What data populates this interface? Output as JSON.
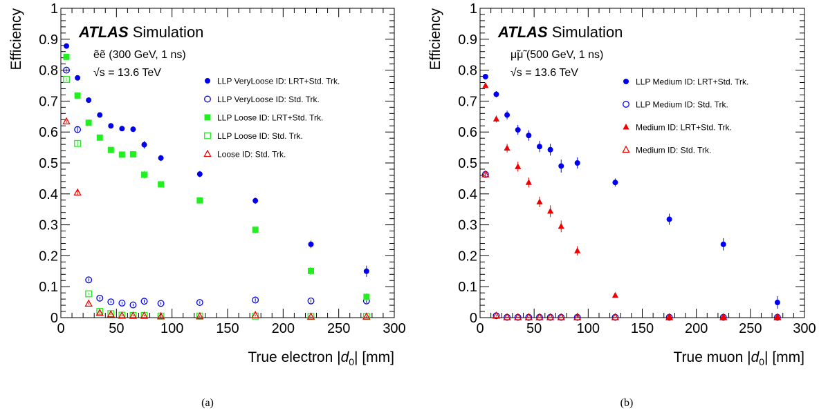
{
  "chart_data": [
    {
      "type": "scatter",
      "caption": "(a)",
      "atlas_label": "ATLAS",
      "atlas_suffix": "Simulation",
      "process_label": "ẽẽ (300 GeV, 1 ns)",
      "energy_label": "√s = 13.6 TeV",
      "xlabel": "True electron |d0| [mm]",
      "ylabel": "Efficiency",
      "xlim": [
        0,
        300
      ],
      "ylim": [
        0,
        1
      ],
      "xticks": [
        "0",
        "50",
        "100",
        "150",
        "200",
        "250",
        "300"
      ],
      "yticks": [
        "0",
        "0.1",
        "0.2",
        "0.3",
        "0.4",
        "0.5",
        "0.6",
        "0.7",
        "0.8",
        "0.9",
        "1"
      ],
      "legend_position": "top-right",
      "series": [
        {
          "name": "LLP VeryLoose ID: LRT+Std. Trk.",
          "marker": "circle-filled",
          "color": "#0000ee",
          "x": [
            5,
            15,
            25,
            35,
            45,
            55,
            65,
            75,
            90,
            125,
            175,
            225,
            275
          ],
          "y": [
            0.878,
            0.775,
            0.703,
            0.655,
            0.62,
            0.611,
            0.609,
            0.559,
            0.516,
            0.464,
            0.378,
            0.237,
            0.15
          ],
          "err": [
            0.005,
            0.008,
            0.007,
            0.008,
            0.008,
            0.008,
            0.009,
            0.012,
            0.01,
            0.01,
            0.01,
            0.012,
            0.018
          ]
        },
        {
          "name": "LLP VeryLoose ID: Std. Trk.",
          "marker": "circle-open",
          "color": "#0000ee",
          "x": [
            5,
            15,
            25,
            35,
            45,
            55,
            65,
            75,
            90,
            125,
            175,
            225,
            275
          ],
          "y": [
            0.8,
            0.608,
            0.122,
            0.063,
            0.051,
            0.047,
            0.041,
            0.053,
            0.046,
            0.049,
            0.057,
            0.054,
            0.054
          ],
          "err": [
            0.005,
            0.008,
            0.005,
            0.004,
            0.004,
            0.004,
            0.004,
            0.005,
            0.004,
            0.004,
            0.005,
            0.005,
            0.007
          ]
        },
        {
          "name": "LLP Loose ID: LRT+Std. Trk.",
          "marker": "square-filled",
          "color": "#22ee22",
          "x": [
            5,
            15,
            25,
            35,
            45,
            55,
            65,
            75,
            90,
            125,
            175,
            225,
            275
          ],
          "y": [
            0.843,
            0.718,
            0.63,
            0.582,
            0.542,
            0.527,
            0.528,
            0.462,
            0.431,
            0.379,
            0.284,
            0.151,
            0.067
          ],
          "err": [
            0.005,
            0.008,
            0.007,
            0.008,
            0.008,
            0.008,
            0.009,
            0.012,
            0.01,
            0.01,
            0.01,
            0.012,
            0.012
          ]
        },
        {
          "name": "LLP Loose ID: Std. Trk.",
          "marker": "square-open",
          "color": "#22ee22",
          "x": [
            5,
            15,
            25,
            35,
            45,
            55,
            65,
            75,
            90,
            125,
            175,
            225,
            275
          ],
          "y": [
            0.77,
            0.563,
            0.077,
            0.02,
            0.013,
            0.008,
            0.007,
            0.007,
            0.005,
            0.005,
            0.005,
            0.004,
            0.004
          ],
          "err": [
            0.005,
            0.008,
            0.004,
            0.002,
            0.002,
            0.002,
            0.002,
            0.002,
            0.002,
            0.002,
            0.002,
            0.002,
            0.002
          ]
        },
        {
          "name": "Loose ID: Std. Trk.",
          "marker": "triangle-open",
          "color": "#ee0000",
          "x": [
            5,
            15,
            25,
            35,
            45,
            55,
            65,
            75,
            90,
            125,
            175,
            225,
            275
          ],
          "y": [
            0.634,
            0.404,
            0.045,
            0.015,
            0.01,
            0.006,
            0.006,
            0.006,
            0.004,
            0.004,
            0.008,
            0.003,
            0.003
          ],
          "err": [
            0.005,
            0.008,
            0.003,
            0.002,
            0.002,
            0.002,
            0.002,
            0.002,
            0.002,
            0.002,
            0.002,
            0.002,
            0.002
          ]
        }
      ]
    },
    {
      "type": "scatter",
      "caption": "(b)",
      "atlas_label": "ATLAS",
      "atlas_suffix": "Simulation",
      "process_label": "μ̃μ̃ (500 GeV, 1 ns)",
      "energy_label": "√s = 13.6 TeV",
      "xlabel": "True muon |d0| [mm]",
      "ylabel": "Efficiency",
      "xlim": [
        0,
        300
      ],
      "ylim": [
        0,
        1
      ],
      "xticks": [
        "0",
        "50",
        "100",
        "150",
        "200",
        "250",
        "300"
      ],
      "yticks": [
        "0",
        "0.1",
        "0.2",
        "0.3",
        "0.4",
        "0.5",
        "0.6",
        "0.7",
        "0.8",
        "0.9",
        "1"
      ],
      "legend_position": "top-right",
      "series": [
        {
          "name": "LLP Medium ID: LRT+Std. Trk.",
          "marker": "circle-filled",
          "color": "#0000ee",
          "x": [
            5,
            15,
            25,
            35,
            45,
            55,
            65,
            75,
            90,
            125,
            175,
            225,
            275
          ],
          "y": [
            0.779,
            0.722,
            0.655,
            0.607,
            0.589,
            0.553,
            0.543,
            0.49,
            0.5,
            0.437,
            0.318,
            0.237,
            0.049
          ],
          "err": [
            0.006,
            0.01,
            0.014,
            0.016,
            0.017,
            0.018,
            0.019,
            0.021,
            0.018,
            0.013,
            0.018,
            0.02,
            0.02
          ]
        },
        {
          "name": "LLP Medium ID: Std. Trk.",
          "marker": "circle-open",
          "color": "#0000ee",
          "x": [
            5,
            15,
            25,
            35,
            45,
            55,
            65,
            75,
            90,
            125,
            175,
            225,
            275
          ],
          "y": [
            0.463,
            0.006,
            0.001,
            0.001,
            0.001,
            0.001,
            0.001,
            0.001,
            0.001,
            0.001,
            0.001,
            0.001,
            0.001
          ],
          "err": [
            0.006,
            0.002,
            0.001,
            0.001,
            0.001,
            0.001,
            0.001,
            0.001,
            0.001,
            0.001,
            0.001,
            0.001,
            0.001
          ]
        },
        {
          "name": "Medium ID: LRT+Std. Trk.",
          "marker": "triangle-filled",
          "color": "#ee0000",
          "x": [
            5,
            15,
            25,
            35,
            45,
            55,
            65,
            75,
            90,
            125,
            175,
            225,
            275
          ],
          "y": [
            0.75,
            0.642,
            0.548,
            0.488,
            0.437,
            0.374,
            0.344,
            0.295,
            0.216,
            0.072,
            0.001,
            0.001,
            0.001
          ],
          "err": [
            0.006,
            0.011,
            0.014,
            0.016,
            0.016,
            0.017,
            0.019,
            0.019,
            0.015,
            0.005,
            0.001,
            0.001,
            0.001
          ]
        },
        {
          "name": "Medium ID: Std. Trk.",
          "marker": "triangle-open",
          "color": "#ee0000",
          "x": [
            5,
            15,
            25,
            35,
            45,
            55,
            65,
            75,
            90,
            125,
            175,
            225,
            275
          ],
          "y": [
            0.463,
            0.006,
            0.001,
            0.001,
            0.001,
            0.001,
            0.001,
            0.001,
            0.001,
            0.001,
            0.001,
            0.001,
            0.001
          ],
          "err": [
            0.006,
            0.002,
            0.001,
            0.001,
            0.001,
            0.001,
            0.001,
            0.001,
            0.001,
            0.001,
            0.001,
            0.001,
            0.001
          ]
        }
      ]
    }
  ]
}
